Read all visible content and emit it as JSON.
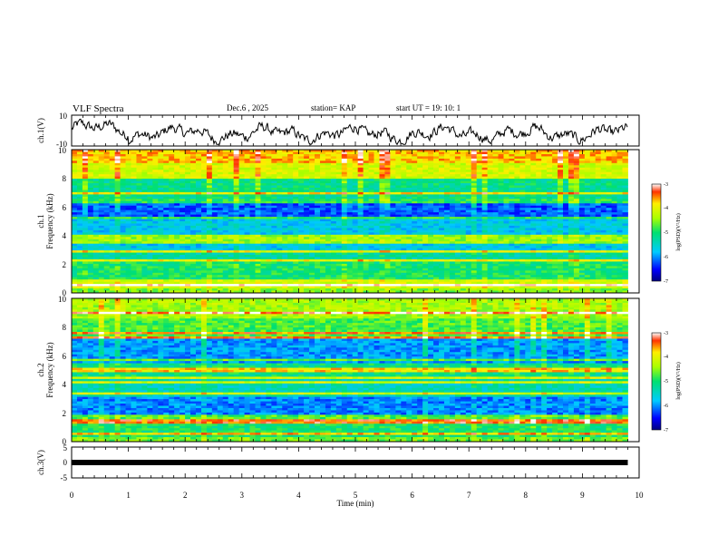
{
  "header": {
    "title": "VLF Spectra",
    "date": "Dec.6 , 2025",
    "station": "station= KAP",
    "start": "start  UT =   19: 10: 1"
  },
  "chart_data": [
    {
      "type": "line",
      "name": "ch1-waveform",
      "ylabel": "ch.1(V)",
      "ylim": [
        -10,
        10
      ],
      "yticks": [
        "10",
        "-10"
      ],
      "xlim": [
        0,
        10
      ]
    },
    {
      "type": "heatmap",
      "name": "ch1-spectrogram",
      "ylabel_top": "ch.1",
      "ylabel": "Frequency (kHz)",
      "ylim": [
        0,
        10
      ],
      "yticks": [
        "0",
        "2",
        "4",
        "6",
        "8",
        "10"
      ],
      "xlim": [
        0,
        10
      ],
      "colorbar": {
        "label": "log(PSD)(V²/Hz)",
        "range": [
          -7,
          -3
        ],
        "ticks": [
          "-3",
          "-4",
          "-5",
          "-6",
          "-7"
        ]
      }
    },
    {
      "type": "heatmap",
      "name": "ch2-spectrogram",
      "ylabel_top": "ch.2",
      "ylabel": "Frequency (kHz)",
      "ylim": [
        0,
        10
      ],
      "yticks": [
        "0",
        "2",
        "4",
        "6",
        "8",
        "10"
      ],
      "xlim": [
        0,
        10
      ],
      "colorbar": {
        "label": "log(PSD)(V²/Hz)",
        "range": [
          -7,
          -3
        ],
        "ticks": [
          "-3",
          "-4",
          "-5",
          "-6",
          "-7"
        ]
      }
    },
    {
      "type": "line",
      "name": "ch3-waveform",
      "ylabel": "ch.3(V)",
      "ylim": [
        -5,
        5
      ],
      "yticks": [
        "5",
        "0",
        "-5"
      ],
      "xlim": [
        0,
        10
      ]
    }
  ],
  "xaxis": {
    "label": "Time (min)",
    "ticks": [
      "0",
      "1",
      "2",
      "3",
      "4",
      "5",
      "6",
      "7",
      "8",
      "9",
      "10"
    ],
    "data_end": 9.8
  }
}
